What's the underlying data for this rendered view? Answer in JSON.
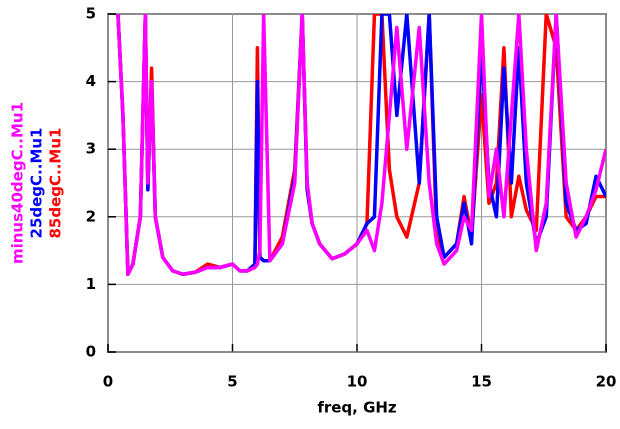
{
  "chart_data": {
    "type": "line",
    "xlabel": "freq, GHz",
    "x": [
      0.4,
      0.6,
      0.8,
      1.0,
      1.3,
      1.5,
      1.6,
      1.75,
      1.9,
      2.2,
      2.6,
      3.0,
      3.5,
      4.0,
      4.5,
      5.0,
      5.3,
      5.6,
      5.9,
      6.0,
      6.1,
      6.25,
      6.5,
      7.0,
      7.5,
      7.8,
      8.0,
      8.2,
      8.5,
      9.0,
      9.5,
      10.0,
      10.4,
      10.7,
      11.0,
      11.3,
      11.6,
      12.0,
      12.5,
      12.9,
      13.2,
      13.5,
      14.0,
      14.3,
      14.6,
      15.0,
      15.3,
      15.6,
      15.9,
      16.2,
      16.5,
      16.8,
      17.2,
      17.6,
      18.0,
      18.4,
      18.8,
      19.2,
      19.6,
      20.0
    ],
    "series": [
      {
        "name": "minus40degC..Mu1",
        "color": "#ff00ff",
        "values": [
          5,
          3.5,
          1.15,
          1.3,
          2.0,
          5,
          2.5,
          4.0,
          2.0,
          1.4,
          1.2,
          1.15,
          1.18,
          1.25,
          1.25,
          1.3,
          1.2,
          1.2,
          1.25,
          1.3,
          1.5,
          5,
          1.35,
          1.6,
          2.5,
          5,
          2.5,
          1.9,
          1.6,
          1.38,
          1.45,
          1.6,
          1.8,
          1.5,
          2.2,
          3.5,
          4.8,
          3.0,
          4.8,
          2.5,
          1.6,
          1.3,
          1.5,
          2.0,
          1.8,
          5,
          2.3,
          3.0,
          2.0,
          3.5,
          5,
          3.0,
          1.5,
          2.2,
          5,
          2.5,
          1.7,
          2.0,
          2.4,
          3.0
        ]
      },
      {
        "name": "25degC..Mu1",
        "color": "#0000ff",
        "values": [
          5,
          3.5,
          1.15,
          1.3,
          2.0,
          5,
          2.4,
          4.0,
          2.0,
          1.4,
          1.2,
          1.15,
          1.18,
          1.25,
          1.25,
          1.3,
          1.2,
          1.2,
          1.3,
          4.0,
          1.4,
          1.35,
          1.35,
          1.6,
          2.6,
          5,
          2.4,
          1.9,
          1.6,
          1.38,
          1.45,
          1.6,
          1.9,
          2.0,
          5,
          5,
          3.5,
          5,
          2.5,
          5,
          2.0,
          1.4,
          1.6,
          2.2,
          1.6,
          4.5,
          2.5,
          2.0,
          4.2,
          2.5,
          4.5,
          2.5,
          1.6,
          2.0,
          5,
          2.2,
          1.8,
          1.9,
          2.6,
          2.3
        ]
      },
      {
        "name": "85degC..Mu1",
        "color": "#ff0000",
        "values": [
          5,
          3.5,
          1.15,
          1.3,
          2.0,
          5,
          2.4,
          4.2,
          2.0,
          1.4,
          1.2,
          1.15,
          1.18,
          1.3,
          1.25,
          1.3,
          1.2,
          1.2,
          1.3,
          4.5,
          1.4,
          1.35,
          1.35,
          1.7,
          2.7,
          5,
          2.4,
          1.9,
          1.6,
          1.38,
          1.45,
          1.6,
          1.9,
          5,
          5,
          2.7,
          2.0,
          1.7,
          2.5,
          5,
          1.7,
          1.4,
          1.6,
          2.3,
          1.7,
          3.8,
          2.2,
          2.5,
          4.5,
          2.0,
          2.6,
          2.1,
          1.8,
          5,
          4.5,
          2.0,
          1.8,
          2.0,
          2.3,
          2.3
        ]
      }
    ],
    "xlim": [
      0,
      20
    ],
    "xticks": [
      0,
      5,
      10,
      15,
      20
    ],
    "ylim": [
      0,
      5
    ],
    "yticks": [
      0,
      1,
      2,
      3,
      4,
      5
    ],
    "grid": true
  }
}
